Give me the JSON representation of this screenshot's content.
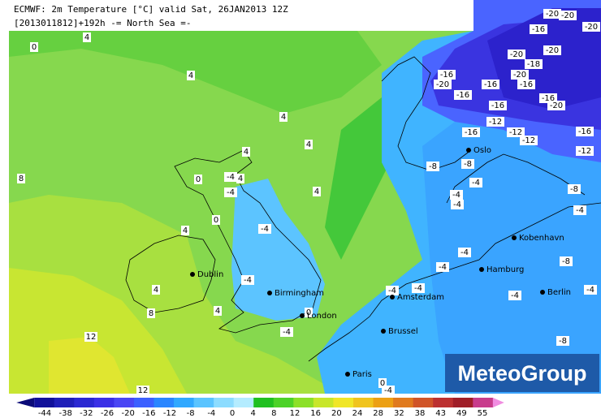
{
  "header": {
    "title": "ECMWF: 2m Temperature [°C] valid Sat, 26JAN2013 12Z",
    "subtitle": "[2013011812]+192h -= North Sea =-"
  },
  "isotherm_labels": [
    -20,
    -20,
    -16,
    -20,
    -20,
    -20,
    -18,
    -16,
    -20,
    -16,
    -16,
    -20,
    -16,
    -16,
    -20,
    -12,
    -12,
    -16,
    -12,
    -16,
    -12,
    -16,
    -8,
    -8,
    -8,
    -8,
    -8,
    -4,
    -4,
    -4,
    -4,
    -4,
    -4,
    -4,
    -4,
    -4,
    -4,
    -4,
    -4,
    -4,
    -4,
    -4,
    -4,
    0,
    0,
    0,
    0,
    0,
    4,
    4,
    4,
    4,
    4,
    4,
    4,
    4,
    4,
    4,
    8,
    8,
    12,
    12
  ],
  "cities": [
    "Oslo",
    "Dublin",
    "Birmingham",
    "London",
    "Amsterdam",
    "Brussel",
    "Paris",
    "Hamburg",
    "Kobenhavn",
    "Berlin"
  ],
  "colorbar": {
    "ticks": [
      -44,
      -38,
      -32,
      -26,
      -20,
      -16,
      -12,
      -8,
      -4,
      0,
      4,
      8,
      12,
      16,
      20,
      24,
      28,
      32,
      38,
      43,
      49,
      55
    ],
    "colors": [
      "#0a0a78",
      "#10109a",
      "#1e1eb8",
      "#2a28d2",
      "#3a30e6",
      "#4a46f4",
      "#3c60ff",
      "#2a86ff",
      "#30a8ff",
      "#5ac4ff",
      "#8cdcff",
      "#b4ecff",
      "#20c020",
      "#4cd228",
      "#8ce028",
      "#c8e62a",
      "#f0e628",
      "#f0c41e",
      "#eca014",
      "#e07a1e",
      "#d05428",
      "#bc3030",
      "#a01e28",
      "#c83c8c",
      "#f08ce0"
    ]
  },
  "logo": "MeteoGroup"
}
